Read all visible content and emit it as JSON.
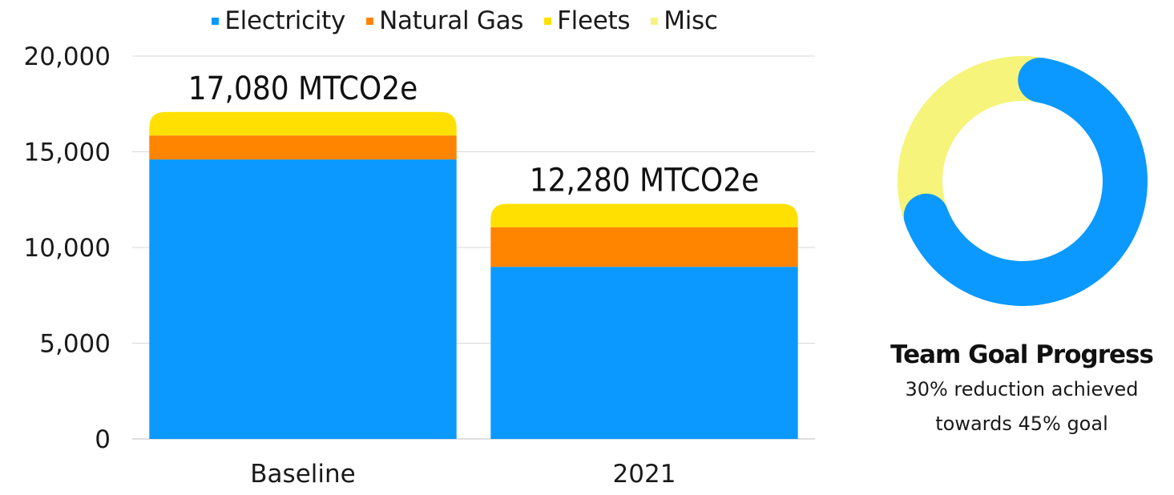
{
  "legend": [
    {
      "label": "Electricity",
      "color": "#0B99FF"
    },
    {
      "label": "Natural Gas",
      "color": "#FF8400"
    },
    {
      "label": "Fleets",
      "color": "#FFE000"
    },
    {
      "label": "Misc",
      "color": "#F6F47A"
    }
  ],
  "chart_data": [
    {
      "type": "bar",
      "stacked": true,
      "categories": [
        "Baseline",
        "2021"
      ],
      "series": [
        {
          "name": "Electricity",
          "values": [
            14600,
            8990
          ],
          "color": "#0B99FF"
        },
        {
          "name": "Natural Gas",
          "values": [
            1250,
            2070
          ],
          "color": "#FF8400"
        },
        {
          "name": "Fleets",
          "values": [
            1230,
            1220
          ],
          "color": "#FFE000"
        },
        {
          "name": "Misc",
          "values": [
            0,
            0
          ],
          "color": "#F6F47A"
        }
      ],
      "data_labels": [
        "17,080 MTCO2e",
        "12,280 MTCO2e"
      ],
      "ylim": [
        0,
        20000
      ],
      "yticks": [
        0,
        5000,
        10000,
        15000,
        20000
      ],
      "ytick_labels": [
        "0",
        "5,000",
        "10,000",
        "15,000",
        "20,000"
      ],
      "grid": true,
      "legend_position": "top"
    },
    {
      "type": "pie",
      "donut": true,
      "slices": [
        {
          "name": "achieved",
          "value": 30,
          "color": "#0B99FF"
        },
        {
          "name": "remaining",
          "value": 15,
          "color": "#F6F47A"
        }
      ],
      "title": "Team Goal Progress",
      "subtitle_lines": [
        "30% reduction achieved",
        "towards 45% goal"
      ]
    }
  ]
}
